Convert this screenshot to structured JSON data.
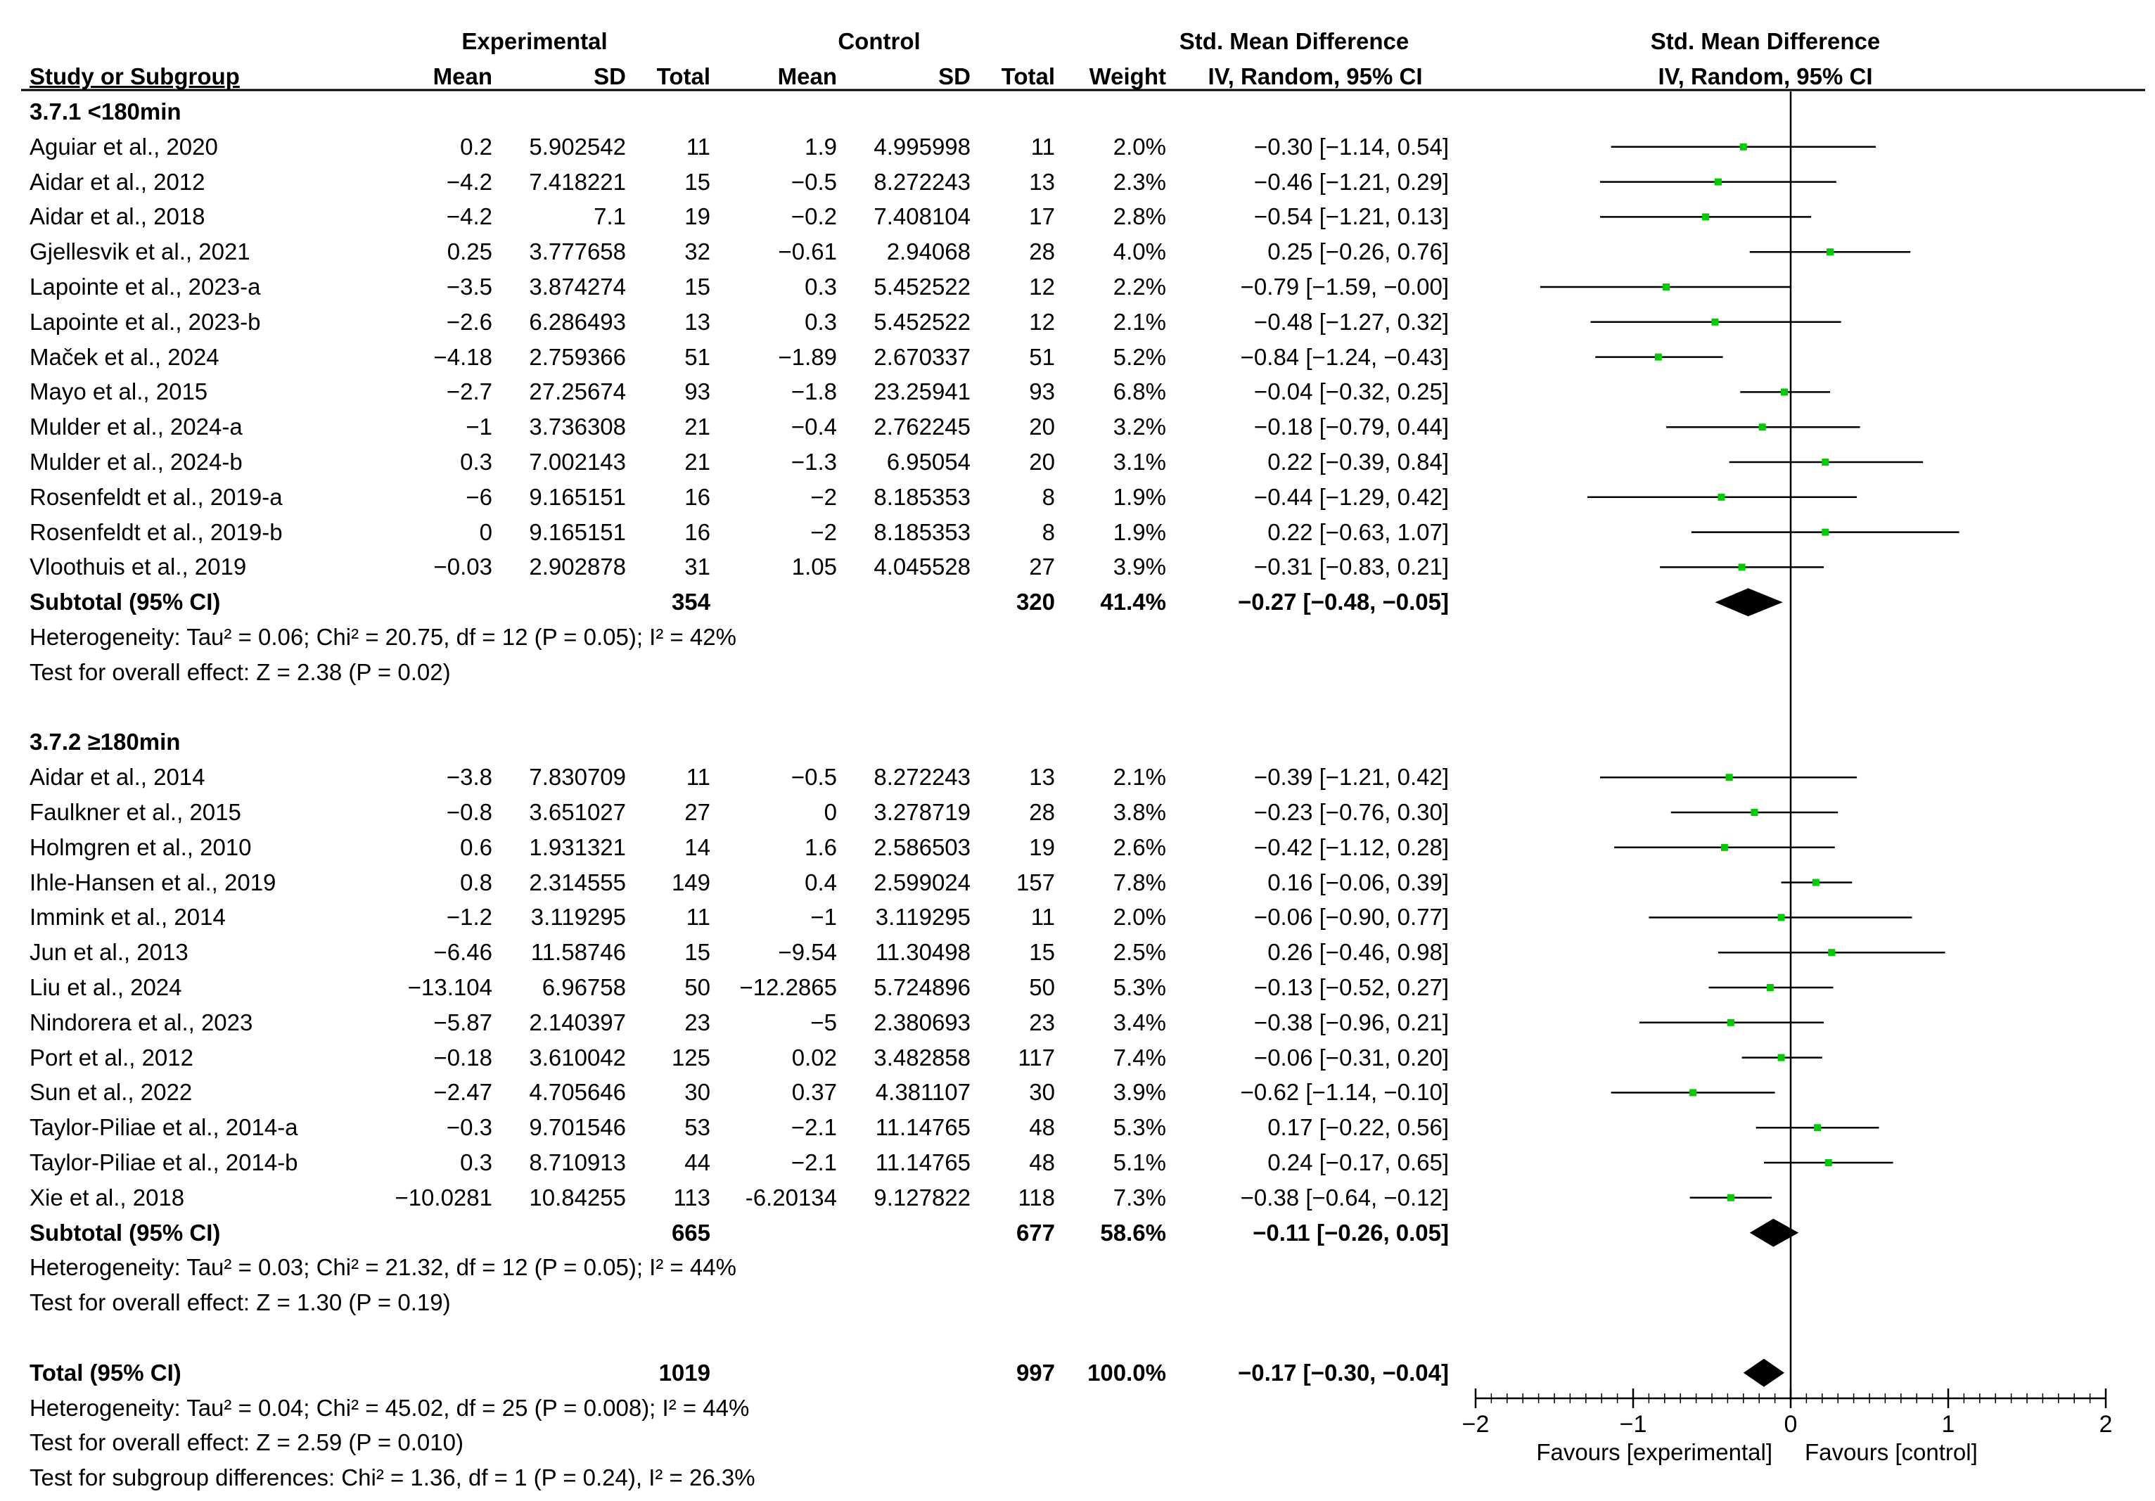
{
  "header": {
    "experimental": "Experimental",
    "control": "Control",
    "smd_left": "Std. Mean Difference",
    "smd_right": "Std. Mean Difference",
    "study": "Study or Subgroup",
    "mean": "Mean",
    "sd": "SD",
    "total": "Total",
    "weight": "Weight",
    "method_left": "IV, Random, 95% CI",
    "method_right": "IV, Random, 95% CI"
  },
  "rows": [
    {
      "kind": "group",
      "label": "3.7.1 <180min"
    },
    {
      "kind": "study",
      "name": "Aguiar et al., 2020",
      "em": "0.2",
      "esd": "5.902542",
      "en": "11",
      "cm": "1.9",
      "csd": "4.995998",
      "cn": "11",
      "w": "2.0%",
      "ci": "−0.30 [−1.14, 0.54]"
    },
    {
      "kind": "study",
      "name": "Aidar et al., 2012",
      "em": "−4.2",
      "esd": "7.418221",
      "en": "15",
      "cm": "−0.5",
      "csd": "8.272243",
      "cn": "13",
      "w": "2.3%",
      "ci": "−0.46 [−1.21, 0.29]"
    },
    {
      "kind": "study",
      "name": "Aidar et al., 2018",
      "em": "−4.2",
      "esd": "7.1",
      "en": "19",
      "cm": "−0.2",
      "csd": "7.408104",
      "cn": "17",
      "w": "2.8%",
      "ci": "−0.54 [−1.21, 0.13]"
    },
    {
      "kind": "study",
      "name": "Gjellesvik et al., 2021",
      "em": "0.25",
      "esd": "3.777658",
      "en": "32",
      "cm": "−0.61",
      "csd": "2.94068",
      "cn": "28",
      "w": "4.0%",
      "ci": "0.25 [−0.26, 0.76]"
    },
    {
      "kind": "study",
      "name": "Lapointe et al., 2023-a",
      "em": "−3.5",
      "esd": "3.874274",
      "en": "15",
      "cm": "0.3",
      "csd": "5.452522",
      "cn": "12",
      "w": "2.2%",
      "ci": "−0.79 [−1.59, −0.00]"
    },
    {
      "kind": "study",
      "name": "Lapointe et al., 2023-b",
      "em": "−2.6",
      "esd": "6.286493",
      "en": "13",
      "cm": "0.3",
      "csd": "5.452522",
      "cn": "12",
      "w": "2.1%",
      "ci": "−0.48 [−1.27, 0.32]"
    },
    {
      "kind": "study",
      "name": "Maček et al., 2024",
      "em": "−4.18",
      "esd": "2.759366",
      "en": "51",
      "cm": "−1.89",
      "csd": "2.670337",
      "cn": "51",
      "w": "5.2%",
      "ci": "−0.84 [−1.24, −0.43]"
    },
    {
      "kind": "study",
      "name": "Mayo et al., 2015",
      "em": "−2.7",
      "esd": "27.25674",
      "en": "93",
      "cm": "−1.8",
      "csd": "23.25941",
      "cn": "93",
      "w": "6.8%",
      "ci": "−0.04 [−0.32, 0.25]"
    },
    {
      "kind": "study",
      "name": "Mulder et al., 2024-a",
      "em": "−1",
      "esd": "3.736308",
      "en": "21",
      "cm": "−0.4",
      "csd": "2.762245",
      "cn": "20",
      "w": "3.2%",
      "ci": "−0.18 [−0.79, 0.44]"
    },
    {
      "kind": "study",
      "name": "Mulder et al., 2024-b",
      "em": "0.3",
      "esd": "7.002143",
      "en": "21",
      "cm": "−1.3",
      "csd": "6.95054",
      "cn": "20",
      "w": "3.1%",
      "ci": "0.22 [−0.39, 0.84]"
    },
    {
      "kind": "study",
      "name": "Rosenfeldt et al., 2019-a",
      "em": "−6",
      "esd": "9.165151",
      "en": "16",
      "cm": "−2",
      "csd": "8.185353",
      "cn": "8",
      "w": "1.9%",
      "ci": "−0.44 [−1.29, 0.42]"
    },
    {
      "kind": "study",
      "name": "Rosenfeldt et al., 2019-b",
      "em": "0",
      "esd": "9.165151",
      "en": "16",
      "cm": "−2",
      "csd": "8.185353",
      "cn": "8",
      "w": "1.9%",
      "ci": "0.22 [−0.63, 1.07]"
    },
    {
      "kind": "study",
      "name": "Vloothuis et al., 2019",
      "em": "−0.03",
      "esd": "2.902878",
      "en": "31",
      "cm": "1.05",
      "csd": "4.045528",
      "cn": "27",
      "w": "3.9%",
      "ci": "−0.31 [−0.83, 0.21]"
    },
    {
      "kind": "subtotal",
      "name": "Subtotal (95% CI)",
      "en": "354",
      "cn": "320",
      "w": "41.4%",
      "ci": "−0.27 [−0.48, −0.05]"
    },
    {
      "kind": "note",
      "text": "Heterogeneity: Tau² = 0.06; Chi² = 20.75, df = 12 (P = 0.05); I² = 42%"
    },
    {
      "kind": "note",
      "text": "Test for overall effect: Z = 2.38 (P = 0.02)"
    },
    {
      "kind": "blank"
    },
    {
      "kind": "group",
      "label": "3.7.2 ≥180min"
    },
    {
      "kind": "study",
      "name": "Aidar et al., 2014",
      "em": "−3.8",
      "esd": "7.830709",
      "en": "11",
      "cm": "−0.5",
      "csd": "8.272243",
      "cn": "13",
      "w": "2.1%",
      "ci": "−0.39 [−1.21, 0.42]"
    },
    {
      "kind": "study",
      "name": "Faulkner et al., 2015",
      "em": "−0.8",
      "esd": "3.651027",
      "en": "27",
      "cm": "0",
      "csd": "3.278719",
      "cn": "28",
      "w": "3.8%",
      "ci": "−0.23 [−0.76, 0.30]"
    },
    {
      "kind": "study",
      "name": "Holmgren et al., 2010",
      "em": "0.6",
      "esd": "1.931321",
      "en": "14",
      "cm": "1.6",
      "csd": "2.586503",
      "cn": "19",
      "w": "2.6%",
      "ci": "−0.42 [−1.12, 0.28]"
    },
    {
      "kind": "study",
      "name": "Ihle-Hansen et al., 2019",
      "em": "0.8",
      "esd": "2.314555",
      "en": "149",
      "cm": "0.4",
      "csd": "2.599024",
      "cn": "157",
      "w": "7.8%",
      "ci": "0.16 [−0.06, 0.39]"
    },
    {
      "kind": "study",
      "name": "Immink et al., 2014",
      "em": "−1.2",
      "esd": "3.119295",
      "en": "11",
      "cm": "−1",
      "csd": "3.119295",
      "cn": "11",
      "w": "2.0%",
      "ci": "−0.06 [−0.90, 0.77]"
    },
    {
      "kind": "study",
      "name": "Jun et al., 2013",
      "em": "−6.46",
      "esd": "11.58746",
      "en": "15",
      "cm": "−9.54",
      "csd": "11.30498",
      "cn": "15",
      "w": "2.5%",
      "ci": "0.26 [−0.46, 0.98]"
    },
    {
      "kind": "study",
      "name": "Liu et al., 2024",
      "em": "−13.104",
      "esd": "6.96758",
      "en": "50",
      "cm": "−12.2865",
      "csd": "5.724896",
      "cn": "50",
      "w": "5.3%",
      "ci": "−0.13 [−0.52, 0.27]"
    },
    {
      "kind": "study",
      "name": "Nindorera et al., 2023",
      "em": "−5.87",
      "esd": "2.140397",
      "en": "23",
      "cm": "−5",
      "csd": "2.380693",
      "cn": "23",
      "w": "3.4%",
      "ci": "−0.38 [−0.96, 0.21]"
    },
    {
      "kind": "study",
      "name": "Port et al., 2012",
      "em": "−0.18",
      "esd": "3.610042",
      "en": "125",
      "cm": "0.02",
      "csd": "3.482858",
      "cn": "117",
      "w": "7.4%",
      "ci": "−0.06 [−0.31, 0.20]"
    },
    {
      "kind": "study",
      "name": "Sun et al., 2022",
      "em": "−2.47",
      "esd": "4.705646",
      "en": "30",
      "cm": "0.37",
      "csd": "4.381107",
      "cn": "30",
      "w": "3.9%",
      "ci": "−0.62 [−1.14, −0.10]"
    },
    {
      "kind": "study",
      "name": "Taylor-Piliae et al., 2014-a",
      "em": "−0.3",
      "esd": "9.701546",
      "en": "53",
      "cm": "−2.1",
      "csd": "11.14765",
      "cn": "48",
      "w": "5.3%",
      "ci": "0.17 [−0.22, 0.56]"
    },
    {
      "kind": "study",
      "name": "Taylor-Piliae et al., 2014-b",
      "em": "0.3",
      "esd": "8.710913",
      "en": "44",
      "cm": "−2.1",
      "csd": "11.14765",
      "cn": "48",
      "w": "5.1%",
      "ci": "0.24 [−0.17, 0.65]"
    },
    {
      "kind": "study",
      "name": "Xie et al., 2018",
      "em": "−10.0281",
      "esd": "10.84255",
      "en": "113",
      "cm": "-6.20134",
      "csd": "9.127822",
      "cn": "118",
      "w": "7.3%",
      "ci": "−0.38 [−0.64, −0.12]"
    },
    {
      "kind": "subtotal",
      "name": "Subtotal (95% CI)",
      "en": "665",
      "cn": "677",
      "w": "58.6%",
      "ci": "−0.11 [−0.26, 0.05]"
    },
    {
      "kind": "note",
      "text": "Heterogeneity: Tau² = 0.03; Chi² = 21.32, df = 12 (P = 0.05); I² = 44%"
    },
    {
      "kind": "note",
      "text": "Test for overall effect: Z = 1.30 (P = 0.19)"
    },
    {
      "kind": "blank"
    },
    {
      "kind": "subtotal",
      "name": "Total (95% CI)",
      "en": "1019",
      "cn": "997",
      "w": "100.0%",
      "ci": "−0.17 [−0.30, −0.04]"
    },
    {
      "kind": "note",
      "text": "Heterogeneity: Tau² = 0.04; Chi² = 45.02, df = 25 (P = 0.008); I² = 44%"
    },
    {
      "kind": "note",
      "text": "Test for overall effect: Z = 2.59 (P = 0.010)"
    },
    {
      "kind": "note",
      "text": "Test for subgroup differences: Chi² = 1.36, df = 1 (P = 0.24), I² = 26.3%"
    }
  ],
  "chart_data": {
    "type": "forest",
    "title": "Std. Mean Difference IV, Random, 95% CI",
    "xlim": [
      -2,
      2
    ],
    "xticks": [
      -2,
      -1,
      0,
      1,
      2
    ],
    "xtick_labels": [
      "−2",
      "−1",
      "0",
      "1",
      "2"
    ],
    "xlabel_left": "Favours [experimental]",
    "xlabel_right": "Favours [control]",
    "studies": [
      {
        "name": "Aguiar et al., 2020",
        "est": -0.3,
        "lo": -1.14,
        "hi": 0.54
      },
      {
        "name": "Aidar et al., 2012",
        "est": -0.46,
        "lo": -1.21,
        "hi": 0.29
      },
      {
        "name": "Aidar et al., 2018",
        "est": -0.54,
        "lo": -1.21,
        "hi": 0.13
      },
      {
        "name": "Gjellesvik et al., 2021",
        "est": 0.25,
        "lo": -0.26,
        "hi": 0.76
      },
      {
        "name": "Lapointe et al., 2023-a",
        "est": -0.79,
        "lo": -1.59,
        "hi": 0.0
      },
      {
        "name": "Lapointe et al., 2023-b",
        "est": -0.48,
        "lo": -1.27,
        "hi": 0.32
      },
      {
        "name": "Maček et al., 2024",
        "est": -0.84,
        "lo": -1.24,
        "hi": -0.43
      },
      {
        "name": "Mayo et al., 2015",
        "est": -0.04,
        "lo": -0.32,
        "hi": 0.25
      },
      {
        "name": "Mulder et al., 2024-a",
        "est": -0.18,
        "lo": -0.79,
        "hi": 0.44
      },
      {
        "name": "Mulder et al., 2024-b",
        "est": 0.22,
        "lo": -0.39,
        "hi": 0.84
      },
      {
        "name": "Rosenfeldt et al., 2019-a",
        "est": -0.44,
        "lo": -1.29,
        "hi": 0.42
      },
      {
        "name": "Rosenfeldt et al., 2019-b",
        "est": 0.22,
        "lo": -0.63,
        "hi": 1.07
      },
      {
        "name": "Vloothuis et al., 2019",
        "est": -0.31,
        "lo": -0.83,
        "hi": 0.21
      },
      {
        "name": "Subtotal 3.7.1",
        "est": -0.27,
        "lo": -0.48,
        "hi": -0.05,
        "diamond": true
      },
      {
        "name": "Aidar et al., 2014",
        "est": -0.39,
        "lo": -1.21,
        "hi": 0.42
      },
      {
        "name": "Faulkner et al., 2015",
        "est": -0.23,
        "lo": -0.76,
        "hi": 0.3
      },
      {
        "name": "Holmgren et al., 2010",
        "est": -0.42,
        "lo": -1.12,
        "hi": 0.28
      },
      {
        "name": "Ihle-Hansen et al., 2019",
        "est": 0.16,
        "lo": -0.06,
        "hi": 0.39
      },
      {
        "name": "Immink et al., 2014",
        "est": -0.06,
        "lo": -0.9,
        "hi": 0.77
      },
      {
        "name": "Jun et al., 2013",
        "est": 0.26,
        "lo": -0.46,
        "hi": 0.98
      },
      {
        "name": "Liu et al., 2024",
        "est": -0.13,
        "lo": -0.52,
        "hi": 0.27
      },
      {
        "name": "Nindorera et al., 2023",
        "est": -0.38,
        "lo": -0.96,
        "hi": 0.21
      },
      {
        "name": "Port et al., 2012",
        "est": -0.06,
        "lo": -0.31,
        "hi": 0.2
      },
      {
        "name": "Sun et al., 2022",
        "est": -0.62,
        "lo": -1.14,
        "hi": -0.1
      },
      {
        "name": "Taylor-Piliae et al., 2014-a",
        "est": 0.17,
        "lo": -0.22,
        "hi": 0.56
      },
      {
        "name": "Taylor-Piliae et al., 2014-b",
        "est": 0.24,
        "lo": -0.17,
        "hi": 0.65
      },
      {
        "name": "Xie et al., 2018",
        "est": -0.38,
        "lo": -0.64,
        "hi": -0.12
      },
      {
        "name": "Subtotal 3.7.2",
        "est": -0.11,
        "lo": -0.26,
        "hi": 0.05,
        "diamond": true
      },
      {
        "name": "Total",
        "est": -0.17,
        "lo": -0.3,
        "hi": -0.04,
        "diamond": true
      }
    ],
    "colors": {
      "point": "#00cc00",
      "line": "#000000",
      "diamond": "#000000"
    }
  }
}
